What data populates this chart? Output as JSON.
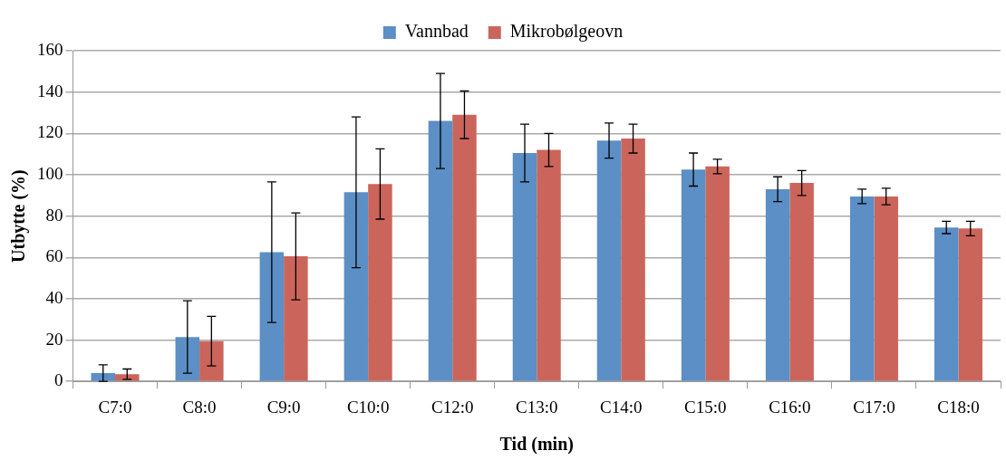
{
  "chart_data": {
    "type": "bar",
    "xlabel": "Tid (min)",
    "ylabel": "Utbytte (%)",
    "categories": [
      "C7:0",
      "C8:0",
      "C9:0",
      "C10:0",
      "C12:0",
      "C13:0",
      "C14:0",
      "C15:0",
      "C16:0",
      "C17:0",
      "C18:0"
    ],
    "series": [
      {
        "name": "Vannbad",
        "color": "#5b8fc5",
        "values": [
          4,
          21.5,
          62.5,
          91.5,
          126,
          110.5,
          116.5,
          102.5,
          93,
          89.5,
          74.5
        ],
        "errors": [
          4,
          17.5,
          34,
          36.5,
          23,
          14,
          8.5,
          8,
          6,
          3.5,
          3
        ]
      },
      {
        "name": "Mikrobølgeovn",
        "color": "#cb655b",
        "values": [
          3.5,
          19.5,
          60.5,
          95.5,
          129,
          112,
          117.5,
          104,
          96,
          89.5,
          74
        ],
        "errors": [
          2.5,
          12,
          21,
          17,
          11.5,
          8,
          7,
          3.5,
          6,
          4,
          3.5
        ]
      }
    ],
    "ylim": [
      0,
      160
    ],
    "yticks": [
      0,
      20,
      40,
      60,
      80,
      100,
      120,
      140,
      160
    ],
    "grid": "y",
    "legend": "top"
  }
}
